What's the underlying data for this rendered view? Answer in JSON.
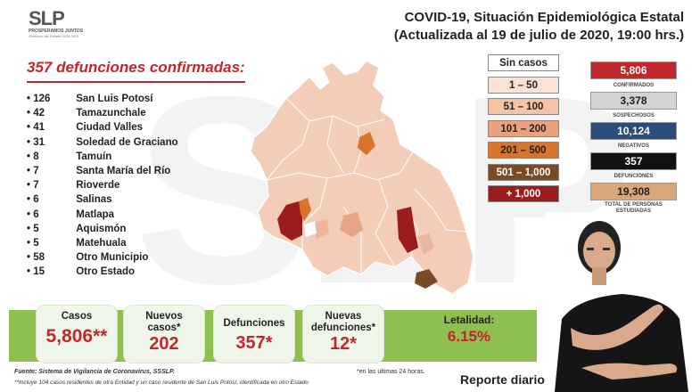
{
  "logo": {
    "mark": "SLP",
    "line1": "PROSPERAMOS JUNTOS",
    "line2": "Gobierno del Estado 2015-2021"
  },
  "header": {
    "title_line1": "COVID-19, Situación Epidemiológica Estatal",
    "title_line2": "(Actualizada al 19 de julio de 2020, 19:00 hrs.)"
  },
  "deaths_title": "357 defunciones confirmadas:",
  "deaths_list": [
    {
      "count": "126",
      "place": "San Luis Potosí"
    },
    {
      "count": "42",
      "place": "Tamazunchale"
    },
    {
      "count": "41",
      "place": "Ciudad Valles"
    },
    {
      "count": "31",
      "place": "Soledad de Graciano"
    },
    {
      "count": "8",
      "place": "Tamuín"
    },
    {
      "count": "7",
      "place": "Santa María del Río"
    },
    {
      "count": "7",
      "place": "Rioverde"
    },
    {
      "count": "6",
      "place": "Salinas"
    },
    {
      "count": "6",
      "place": "Matlapa"
    },
    {
      "count": "5",
      "place": "Aquismón"
    },
    {
      "count": "5",
      "place": "Matehuala"
    },
    {
      "count": "58",
      "place": "Otro Municipio"
    },
    {
      "count": "15",
      "place": "Otro Estado"
    }
  ],
  "legend": [
    {
      "label": "Sin casos",
      "bg": "#ffffff",
      "fg": "#222222"
    },
    {
      "label": "1 – 50",
      "bg": "#fbe2d4",
      "fg": "#222222"
    },
    {
      "label": "51 – 100",
      "bg": "#f5c3a6",
      "fg": "#222222"
    },
    {
      "label": "101 – 200",
      "bg": "#eaa27e",
      "fg": "#222222"
    },
    {
      "label": "201 – 500",
      "bg": "#d9742c",
      "fg": "#222222"
    },
    {
      "label": "501 – 1,000",
      "bg": "#7a4a25",
      "fg": "#ffffff"
    },
    {
      "label": "+ 1,000",
      "bg": "#9b1c1c",
      "fg": "#ffffff"
    }
  ],
  "stats": [
    {
      "value": "5,806",
      "label": "CONFIRMADOS",
      "bg": "#c0282c",
      "fg": "#ffffff"
    },
    {
      "value": "3,378",
      "label": "SOSPECHOSOS",
      "bg": "#d3d3d3",
      "fg": "#222222"
    },
    {
      "value": "10,124",
      "label": "NEGATIVOS",
      "bg": "#2a4d7a",
      "fg": "#ffffff"
    },
    {
      "value": "357",
      "label": "DEFUNCIONES",
      "bg": "#111111",
      "fg": "#ffffff"
    },
    {
      "value": "19,308",
      "label": "TOTAL DE PERSONAS ESTUDIADAS",
      "bg": "#d9a77a",
      "fg": "#222222"
    }
  ],
  "summary": {
    "cases": {
      "label": "Casos",
      "value": "5,806**"
    },
    "new_cases": {
      "label": "Nuevos casos*",
      "value": "202"
    },
    "deaths": {
      "label": "Defunciones",
      "value": "357*"
    },
    "new_deaths": {
      "label": "Nuevas defunciones*",
      "value": "12*"
    },
    "lethality": {
      "label": "Letalidad:",
      "value": "6.15%"
    }
  },
  "footnotes": {
    "source": "Fuente: Sistema de Vigilancia de Coronavirus, SSSLP.",
    "note": "**Incluye 104 casos residentes de otra Entidad y un caso residente de San Luis Potosí, identificada en otro Estado",
    "last24": "*en las ultimas 24 horas."
  },
  "report_label": "Reporte diario",
  "colors": {
    "accent_red": "#c0282c",
    "band_green": "#8fbf4e"
  }
}
